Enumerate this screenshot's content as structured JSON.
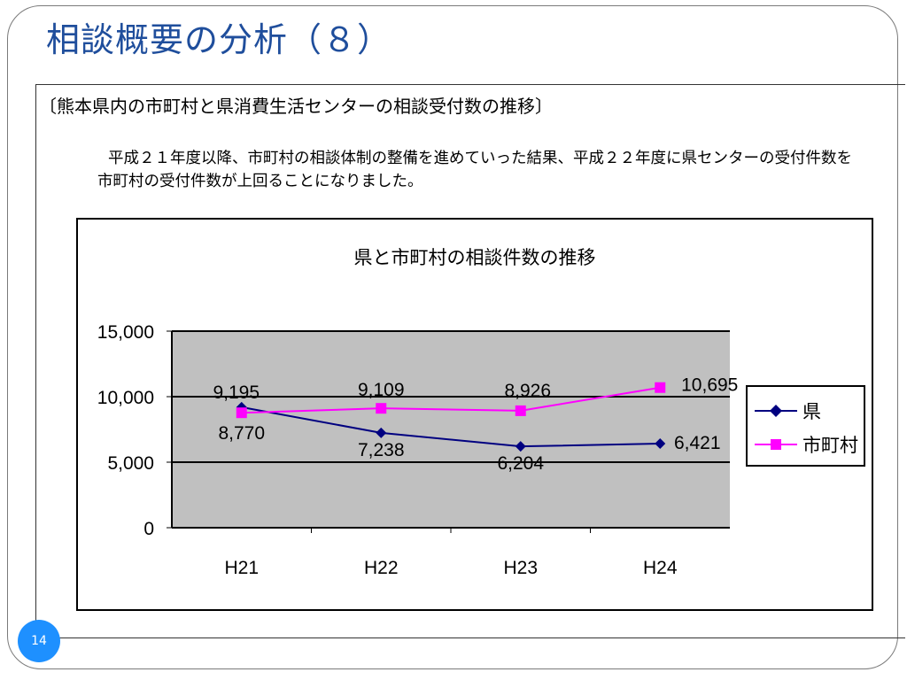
{
  "slide": {
    "title": "相談概要の分析（８）",
    "section_heading": "〔熊本県内の市町村と県消費生活センターの相談受付数の推移〕",
    "description": "平成２１年度以降、市町村の相談体制の整備を進めていった結果、平成２２年度に県センターの受付件数を市町村の受付件数が上回ることになりました。",
    "page_number": "14"
  },
  "chart_data": {
    "type": "line",
    "title": "県と市町村の相談件数の推移",
    "categories": [
      "H21",
      "H22",
      "H23",
      "H24"
    ],
    "ylim": [
      0,
      15000
    ],
    "yticks": [
      0,
      5000,
      10000,
      15000
    ],
    "ytick_labels": [
      "0",
      "5,000",
      "10,000",
      "15,000"
    ],
    "grid": true,
    "legend_position": "right",
    "plot_background": "#c0c0c0",
    "series": [
      {
        "name": "県",
        "values": [
          9195,
          7238,
          6204,
          6421
        ],
        "labels": [
          "9,195",
          "7,238",
          "6,204",
          "6,421"
        ],
        "color": "#000080",
        "marker": "diamond"
      },
      {
        "name": "市町村",
        "values": [
          8770,
          9109,
          8926,
          10695
        ],
        "labels": [
          "8,770",
          "9,109",
          "8,926",
          "10,695"
        ],
        "color": "#ff00ff",
        "marker": "square"
      }
    ]
  }
}
